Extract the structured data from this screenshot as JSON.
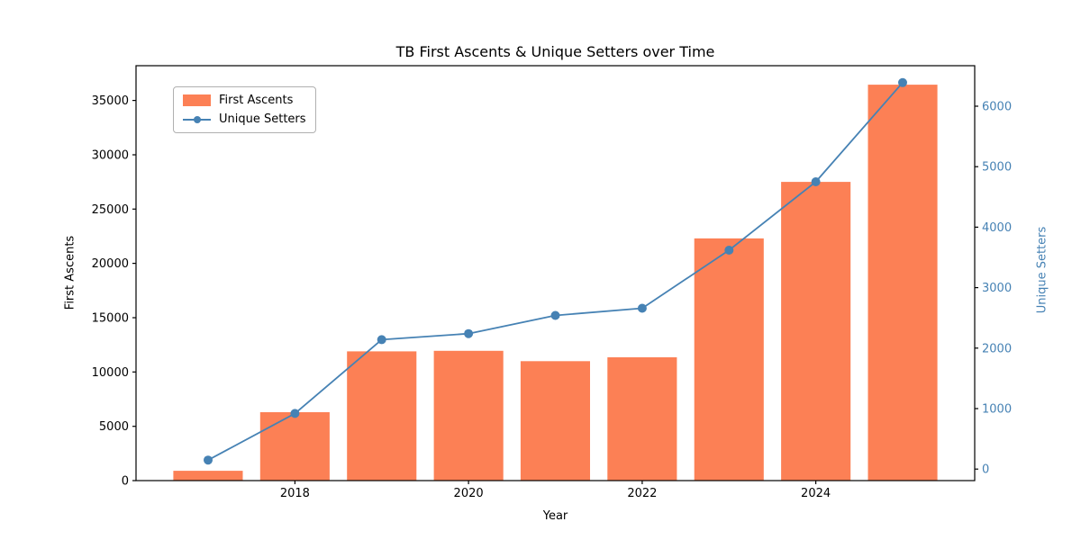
{
  "chart_data": {
    "type": "bar",
    "title": "TB First Ascents & Unique Setters over Time",
    "xlabel": "Year",
    "ylabel_left": "First Ascents",
    "ylabel_right": "Unique Setters",
    "categories": [
      2017,
      2018,
      2019,
      2020,
      2021,
      2022,
      2023,
      2024,
      2025
    ],
    "series": [
      {
        "name": "First Ascents",
        "type": "bar",
        "axis": "left",
        "color": "#fc8055",
        "values": [
          900,
          6300,
          11900,
          11950,
          11000,
          11350,
          22300,
          27500,
          36450
        ]
      },
      {
        "name": "Unique Setters",
        "type": "line",
        "axis": "right",
        "color": "#4682b4",
        "values": [
          150,
          920,
          2140,
          2240,
          2540,
          2660,
          3620,
          4750,
          6390
        ]
      }
    ],
    "x_axis": {
      "ticks": [
        2018,
        2020,
        2022,
        2024
      ],
      "lim": [
        2016.17,
        2025.83
      ]
    },
    "left_axis": {
      "ticks": [
        0,
        5000,
        10000,
        15000,
        20000,
        25000,
        30000,
        35000
      ],
      "lim": [
        0,
        38200
      ],
      "color": "#000000"
    },
    "right_axis": {
      "ticks": [
        0,
        1000,
        2000,
        3000,
        4000,
        5000,
        6000
      ],
      "lim": [
        -190,
        6670
      ],
      "color": "#4682b4"
    },
    "bar_width": 0.8,
    "grid": false,
    "legend_position": "upper left",
    "spine_color": "#000000"
  }
}
